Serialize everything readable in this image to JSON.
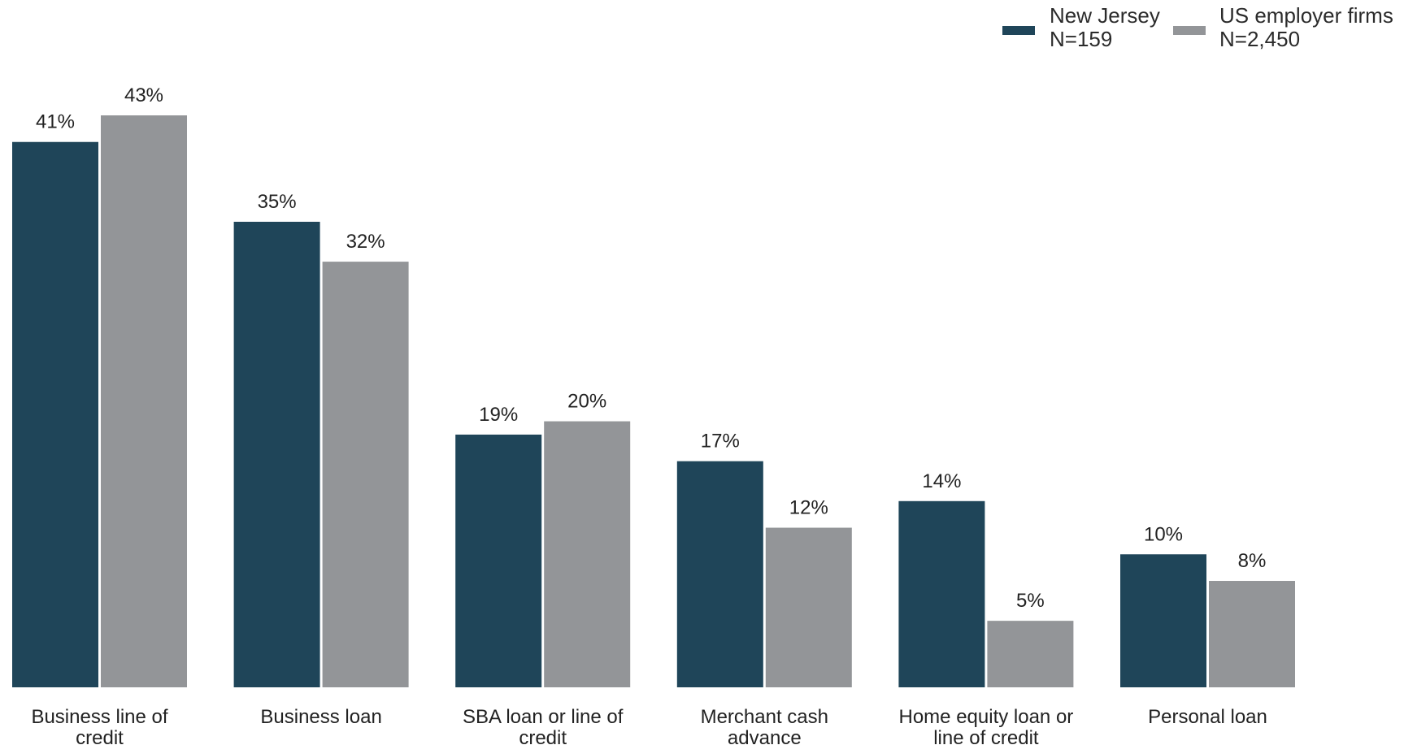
{
  "chart_data": {
    "type": "bar",
    "categories": [
      [
        "Business line of",
        "credit"
      ],
      [
        "Business loan"
      ],
      [
        "SBA loan or line of",
        "credit"
      ],
      [
        "Merchant cash",
        "advance"
      ],
      [
        "Home equity loan or",
        "line of credit"
      ],
      [
        "Personal loan"
      ]
    ],
    "series": [
      {
        "name": [
          "New Jersey",
          "N=159"
        ],
        "values": [
          41,
          35,
          19,
          17,
          14,
          10
        ],
        "labels": [
          "41%",
          "35%",
          "19%",
          "17%",
          "14%",
          "10%"
        ],
        "color": "#1f4559"
      },
      {
        "name": [
          "US employer firms",
          "N=2,450"
        ],
        "values": [
          43,
          32,
          20,
          12,
          5,
          8
        ],
        "labels": [
          "43%",
          "32%",
          "20%",
          "12%",
          "5%",
          "8%"
        ],
        "color": "#939598"
      }
    ],
    "ylim": [
      0,
      43
    ],
    "grid": false,
    "legend_position": "top-right"
  }
}
